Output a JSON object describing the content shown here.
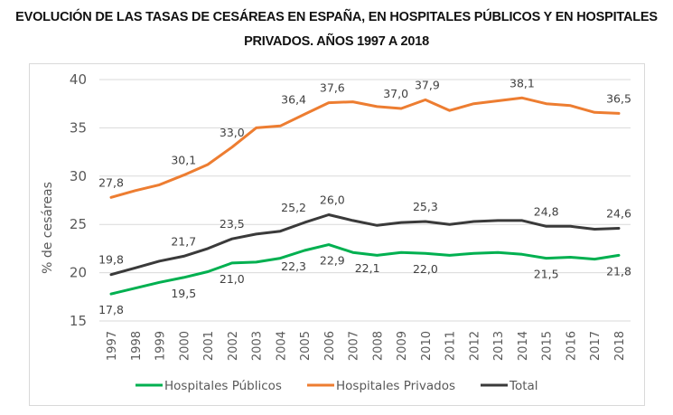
{
  "title_line1": "EVOLUCIÓN DE LAS TASAS DE CESÁREAS EN ESPAÑA, EN HOSPITALES PÚBLICOS Y EN HOSPITALES",
  "title_line2": "PRIVADOS. AÑOS 1997 A 2018",
  "chart_data": {
    "type": "line",
    "title": "EVOLUCIÓN DE LAS TASAS DE CESÁREAS EN ESPAÑA, EN HOSPITALES PÚBLICOS Y EN HOSPITALES PRIVADOS. AÑOS 1997 A 2018",
    "xlabel": "",
    "ylabel": "% de cesáreas",
    "ylim": [
      15,
      40
    ],
    "yticks": [
      15,
      20,
      25,
      30,
      35,
      40
    ],
    "grid": true,
    "legend_position": "bottom",
    "x": [
      "1997",
      "1998",
      "1999",
      "2000",
      "2001",
      "2002",
      "2003",
      "2004",
      "2005",
      "2006",
      "2007",
      "2008",
      "2009",
      "2010",
      "2011",
      "2012",
      "2013",
      "2014",
      "2015",
      "2016",
      "2017",
      "2018"
    ],
    "series": [
      {
        "name": "Hospitales Públicos",
        "color": "#00b050",
        "values": [
          17.8,
          18.4,
          19.0,
          19.5,
          20.1,
          21.0,
          21.1,
          21.5,
          22.3,
          22.9,
          22.1,
          21.8,
          22.1,
          22.0,
          21.8,
          22.0,
          22.1,
          21.9,
          21.5,
          21.6,
          21.4,
          21.8
        ],
        "labels": [
          {
            "index": 0,
            "text": "17,8",
            "pos": "below"
          },
          {
            "index": 3,
            "text": "19,5",
            "pos": "below"
          },
          {
            "index": 5,
            "text": "21,0",
            "pos": "below"
          },
          {
            "index": 8,
            "text": "22,3",
            "pos": "below"
          },
          {
            "index": 9,
            "text": "22,9",
            "pos": "below"
          },
          {
            "index": 10,
            "text": "22,1",
            "pos": "below"
          },
          {
            "index": 13,
            "text": "22,0",
            "pos": "below"
          },
          {
            "index": 18,
            "text": "21,5",
            "pos": "below"
          },
          {
            "index": 21,
            "text": "21,8",
            "pos": "below"
          }
        ]
      },
      {
        "name": "Hospitales Privados",
        "color": "#ed7d31",
        "values": [
          27.8,
          28.5,
          29.1,
          30.1,
          31.2,
          33.0,
          35.0,
          35.2,
          36.4,
          37.6,
          37.7,
          37.2,
          37.0,
          37.9,
          36.8,
          37.5,
          37.8,
          38.1,
          37.5,
          37.3,
          36.6,
          36.5
        ],
        "labels": [
          {
            "index": 0,
            "text": "27,8",
            "pos": "above"
          },
          {
            "index": 3,
            "text": "30,1",
            "pos": "above"
          },
          {
            "index": 5,
            "text": "33,0",
            "pos": "above"
          },
          {
            "index": 8,
            "text": "36,4",
            "pos": "above"
          },
          {
            "index": 9,
            "text": "37,6",
            "pos": "above"
          },
          {
            "index": 12,
            "text": "37,0",
            "pos": "above"
          },
          {
            "index": 13,
            "text": "37,9",
            "pos": "above"
          },
          {
            "index": 17,
            "text": "38,1",
            "pos": "above"
          },
          {
            "index": 21,
            "text": "36,5",
            "pos": "above"
          }
        ]
      },
      {
        "name": "Total",
        "color": "#3a3a3a",
        "values": [
          19.8,
          20.5,
          21.2,
          21.7,
          22.5,
          23.5,
          24.0,
          24.3,
          25.2,
          26.0,
          25.4,
          24.9,
          25.2,
          25.3,
          25.0,
          25.3,
          25.4,
          25.4,
          24.8,
          24.8,
          24.5,
          24.6
        ],
        "labels": [
          {
            "index": 0,
            "text": "19,8",
            "pos": "above"
          },
          {
            "index": 3,
            "text": "21,7",
            "pos": "above"
          },
          {
            "index": 5,
            "text": "23,5",
            "pos": "above"
          },
          {
            "index": 8,
            "text": "25,2",
            "pos": "above"
          },
          {
            "index": 9,
            "text": "26,0",
            "pos": "above"
          },
          {
            "index": 13,
            "text": "25,3",
            "pos": "above"
          },
          {
            "index": 18,
            "text": "24,8",
            "pos": "above"
          },
          {
            "index": 21,
            "text": "24,6",
            "pos": "above"
          }
        ]
      }
    ]
  }
}
